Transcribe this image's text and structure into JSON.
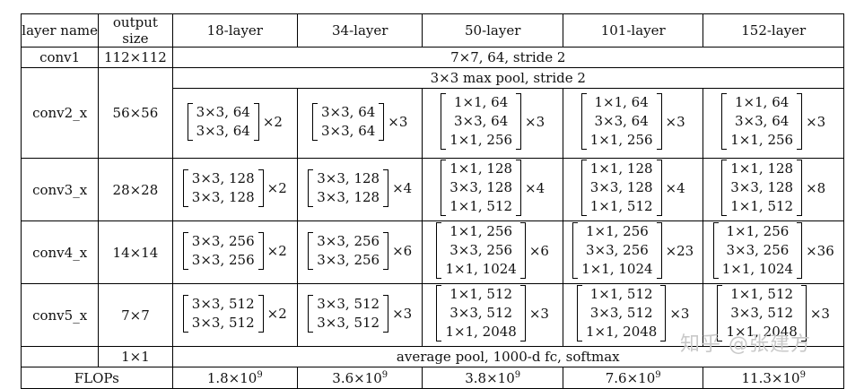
{
  "header": [
    "layer name",
    "output size",
    "18-layer",
    "34-layer",
    "50-layer",
    "101-layer",
    "152-layer"
  ],
  "conv1": {
    "name": "conv1",
    "output": "112×112",
    "config": "7×7, 64, stride 2"
  },
  "pool": {
    "config": "3×3 max pool, stride 2"
  },
  "stages": [
    {
      "name": "conv2_x",
      "output": "56×56",
      "blocks": [
        {
          "lines": [
            "3×3, 64",
            "3×3, 64"
          ],
          "mult": "×2"
        },
        {
          "lines": [
            "3×3, 64",
            "3×3, 64"
          ],
          "mult": "×3"
        },
        {
          "lines": [
            "1×1, 64",
            "3×3, 64",
            "1×1, 256"
          ],
          "mult": "×3"
        },
        {
          "lines": [
            "1×1, 64",
            "3×3, 64",
            "1×1, 256"
          ],
          "mult": "×3"
        },
        {
          "lines": [
            "1×1, 64",
            "3×3, 64",
            "1×1, 256"
          ],
          "mult": "×3"
        }
      ]
    },
    {
      "name": "conv3_x",
      "output": "28×28",
      "blocks": [
        {
          "lines": [
            "3×3, 128",
            "3×3, 128"
          ],
          "mult": "×2"
        },
        {
          "lines": [
            "3×3, 128",
            "3×3, 128"
          ],
          "mult": "×4"
        },
        {
          "lines": [
            "1×1, 128",
            "3×3, 128",
            "1×1, 512"
          ],
          "mult": "×4"
        },
        {
          "lines": [
            "1×1, 128",
            "3×3, 128",
            "1×1, 512"
          ],
          "mult": "×4"
        },
        {
          "lines": [
            "1×1, 128",
            "3×3, 128",
            "1×1, 512"
          ],
          "mult": "×8"
        }
      ]
    },
    {
      "name": "conv4_x",
      "output": "14×14",
      "blocks": [
        {
          "lines": [
            "3×3, 256",
            "3×3, 256"
          ],
          "mult": "×2"
        },
        {
          "lines": [
            "3×3, 256",
            "3×3, 256"
          ],
          "mult": "×6"
        },
        {
          "lines": [
            "1×1, 256",
            "3×3, 256",
            "1×1, 1024"
          ],
          "mult": "×6"
        },
        {
          "lines": [
            "1×1, 256",
            "3×3, 256",
            "1×1, 1024"
          ],
          "mult": "×23"
        },
        {
          "lines": [
            "1×1, 256",
            "3×3, 256",
            "1×1, 1024"
          ],
          "mult": "×36"
        }
      ]
    },
    {
      "name": "conv5_x",
      "output": "7×7",
      "blocks": [
        {
          "lines": [
            "3×3, 512",
            "3×3, 512"
          ],
          "mult": "×2"
        },
        {
          "lines": [
            "3×3, 512",
            "3×3, 512"
          ],
          "mult": "×3"
        },
        {
          "lines": [
            "1×1, 512",
            "3×3, 512",
            "1×1, 2048"
          ],
          "mult": "×3"
        },
        {
          "lines": [
            "1×1, 512",
            "3×3, 512",
            "1×1, 2048"
          ],
          "mult": "×3"
        },
        {
          "lines": [
            "1×1, 512",
            "3×3, 512",
            "1×1, 2048"
          ],
          "mult": "×3"
        }
      ]
    }
  ],
  "final": {
    "output": "1×1",
    "config": "average pool, 1000-d fc, softmax"
  },
  "flops": {
    "label": "FLOPs",
    "values": [
      {
        "mantissa": "1.8×10",
        "exp": "9"
      },
      {
        "mantissa": "3.6×10",
        "exp": "9"
      },
      {
        "mantissa": "3.8×10",
        "exp": "9"
      },
      {
        "mantissa": "7.6×10",
        "exp": "9"
      },
      {
        "mantissa": "11.3×10",
        "exp": "9"
      }
    ]
  },
  "watermark": "知乎 @张建方"
}
